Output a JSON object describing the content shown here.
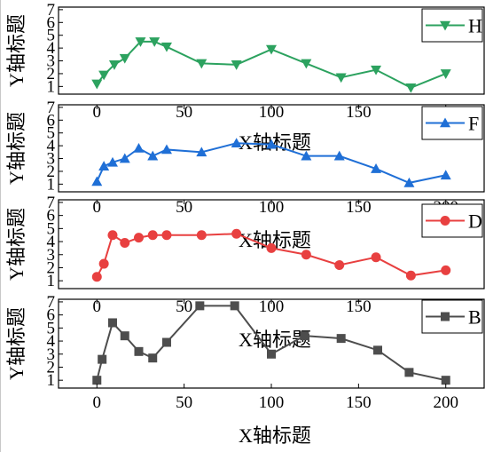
{
  "chart_data": [
    {
      "type": "line",
      "series": [
        {
          "name": "H",
          "color": "#2ca25f",
          "marker": "triangle-down",
          "x": [
            0,
            4,
            10,
            16,
            25,
            33,
            40,
            60,
            80,
            100,
            120,
            140,
            160,
            180,
            200
          ],
          "y": [
            1.2,
            1.9,
            2.7,
            3.2,
            4.5,
            4.5,
            4.1,
            2.8,
            2.7,
            3.9,
            2.8,
            1.7,
            2.3,
            0.9,
            2.0
          ]
        }
      ],
      "xlabel": "",
      "ylabel": "Y轴标题",
      "xlim": [
        -22,
        222
      ],
      "ylim": [
        0.4,
        7.2
      ],
      "yticks": [
        "1",
        "2",
        "3",
        "4",
        "5",
        "6",
        "7"
      ],
      "xticks": [],
      "legend_position": "top-right",
      "grid": false
    },
    {
      "type": "line",
      "series": [
        {
          "name": "F",
          "color": "#1f6fd6",
          "marker": "triangle-up",
          "x": [
            0,
            4,
            9,
            16,
            24,
            32,
            40,
            60,
            80,
            100,
            120,
            139,
            160,
            179,
            200
          ],
          "y": [
            1.2,
            2.4,
            2.7,
            3.0,
            3.8,
            3.2,
            3.7,
            3.5,
            4.2,
            4.1,
            3.2,
            3.2,
            2.2,
            1.1,
            1.7
          ]
        }
      ],
      "xlabel": "X轴标题",
      "ylabel": "Y轴标题",
      "xlim": [
        -22,
        222
      ],
      "ylim": [
        0.4,
        7.2
      ],
      "yticks": [
        "1",
        "2",
        "3",
        "4",
        "5",
        "6",
        "7"
      ],
      "xticks": [
        "0",
        "50",
        "100",
        "150",
        "200"
      ],
      "legend_position": "top-right",
      "grid": false
    },
    {
      "type": "line",
      "series": [
        {
          "name": "D",
          "color": "#e84040",
          "marker": "circle",
          "x": [
            0,
            4,
            9,
            16,
            24,
            32,
            40,
            60,
            80,
            100,
            120,
            139,
            160,
            180,
            200
          ],
          "y": [
            1.3,
            2.3,
            4.5,
            3.9,
            4.3,
            4.5,
            4.5,
            4.5,
            4.6,
            3.5,
            3.0,
            2.2,
            2.8,
            1.4,
            1.8
          ]
        }
      ],
      "xlabel": "X轴标题",
      "ylabel": "Y轴标题",
      "xlim": [
        -22,
        222
      ],
      "ylim": [
        0.4,
        7.2
      ],
      "yticks": [
        "1",
        "2",
        "3",
        "4",
        "5",
        "6",
        "7"
      ],
      "xticks": [
        "0",
        "50",
        "100",
        "150",
        "200"
      ],
      "legend_position": "top-right",
      "grid": false
    },
    {
      "type": "line",
      "series": [
        {
          "name": "B",
          "color": "#4d4d4d",
          "marker": "square",
          "x": [
            0,
            3,
            9,
            16,
            24,
            32,
            40,
            59,
            79,
            100,
            119,
            140,
            161,
            179,
            200
          ],
          "y": [
            1.0,
            2.6,
            5.4,
            4.4,
            3.2,
            2.7,
            3.9,
            6.7,
            6.7,
            3.0,
            4.4,
            4.2,
            3.3,
            1.6,
            1.0
          ]
        }
      ],
      "xlabel": "X轴标题",
      "ylabel": "Y轴标题",
      "xlim": [
        -22,
        222
      ],
      "ylim": [
        0.4,
        7.2
      ],
      "yticks": [
        "1",
        "2",
        "3",
        "4",
        "5",
        "6",
        "7"
      ],
      "xticks": [
        "0",
        "50",
        "100",
        "150",
        "200"
      ],
      "legend_position": "top-right",
      "grid": false
    }
  ]
}
